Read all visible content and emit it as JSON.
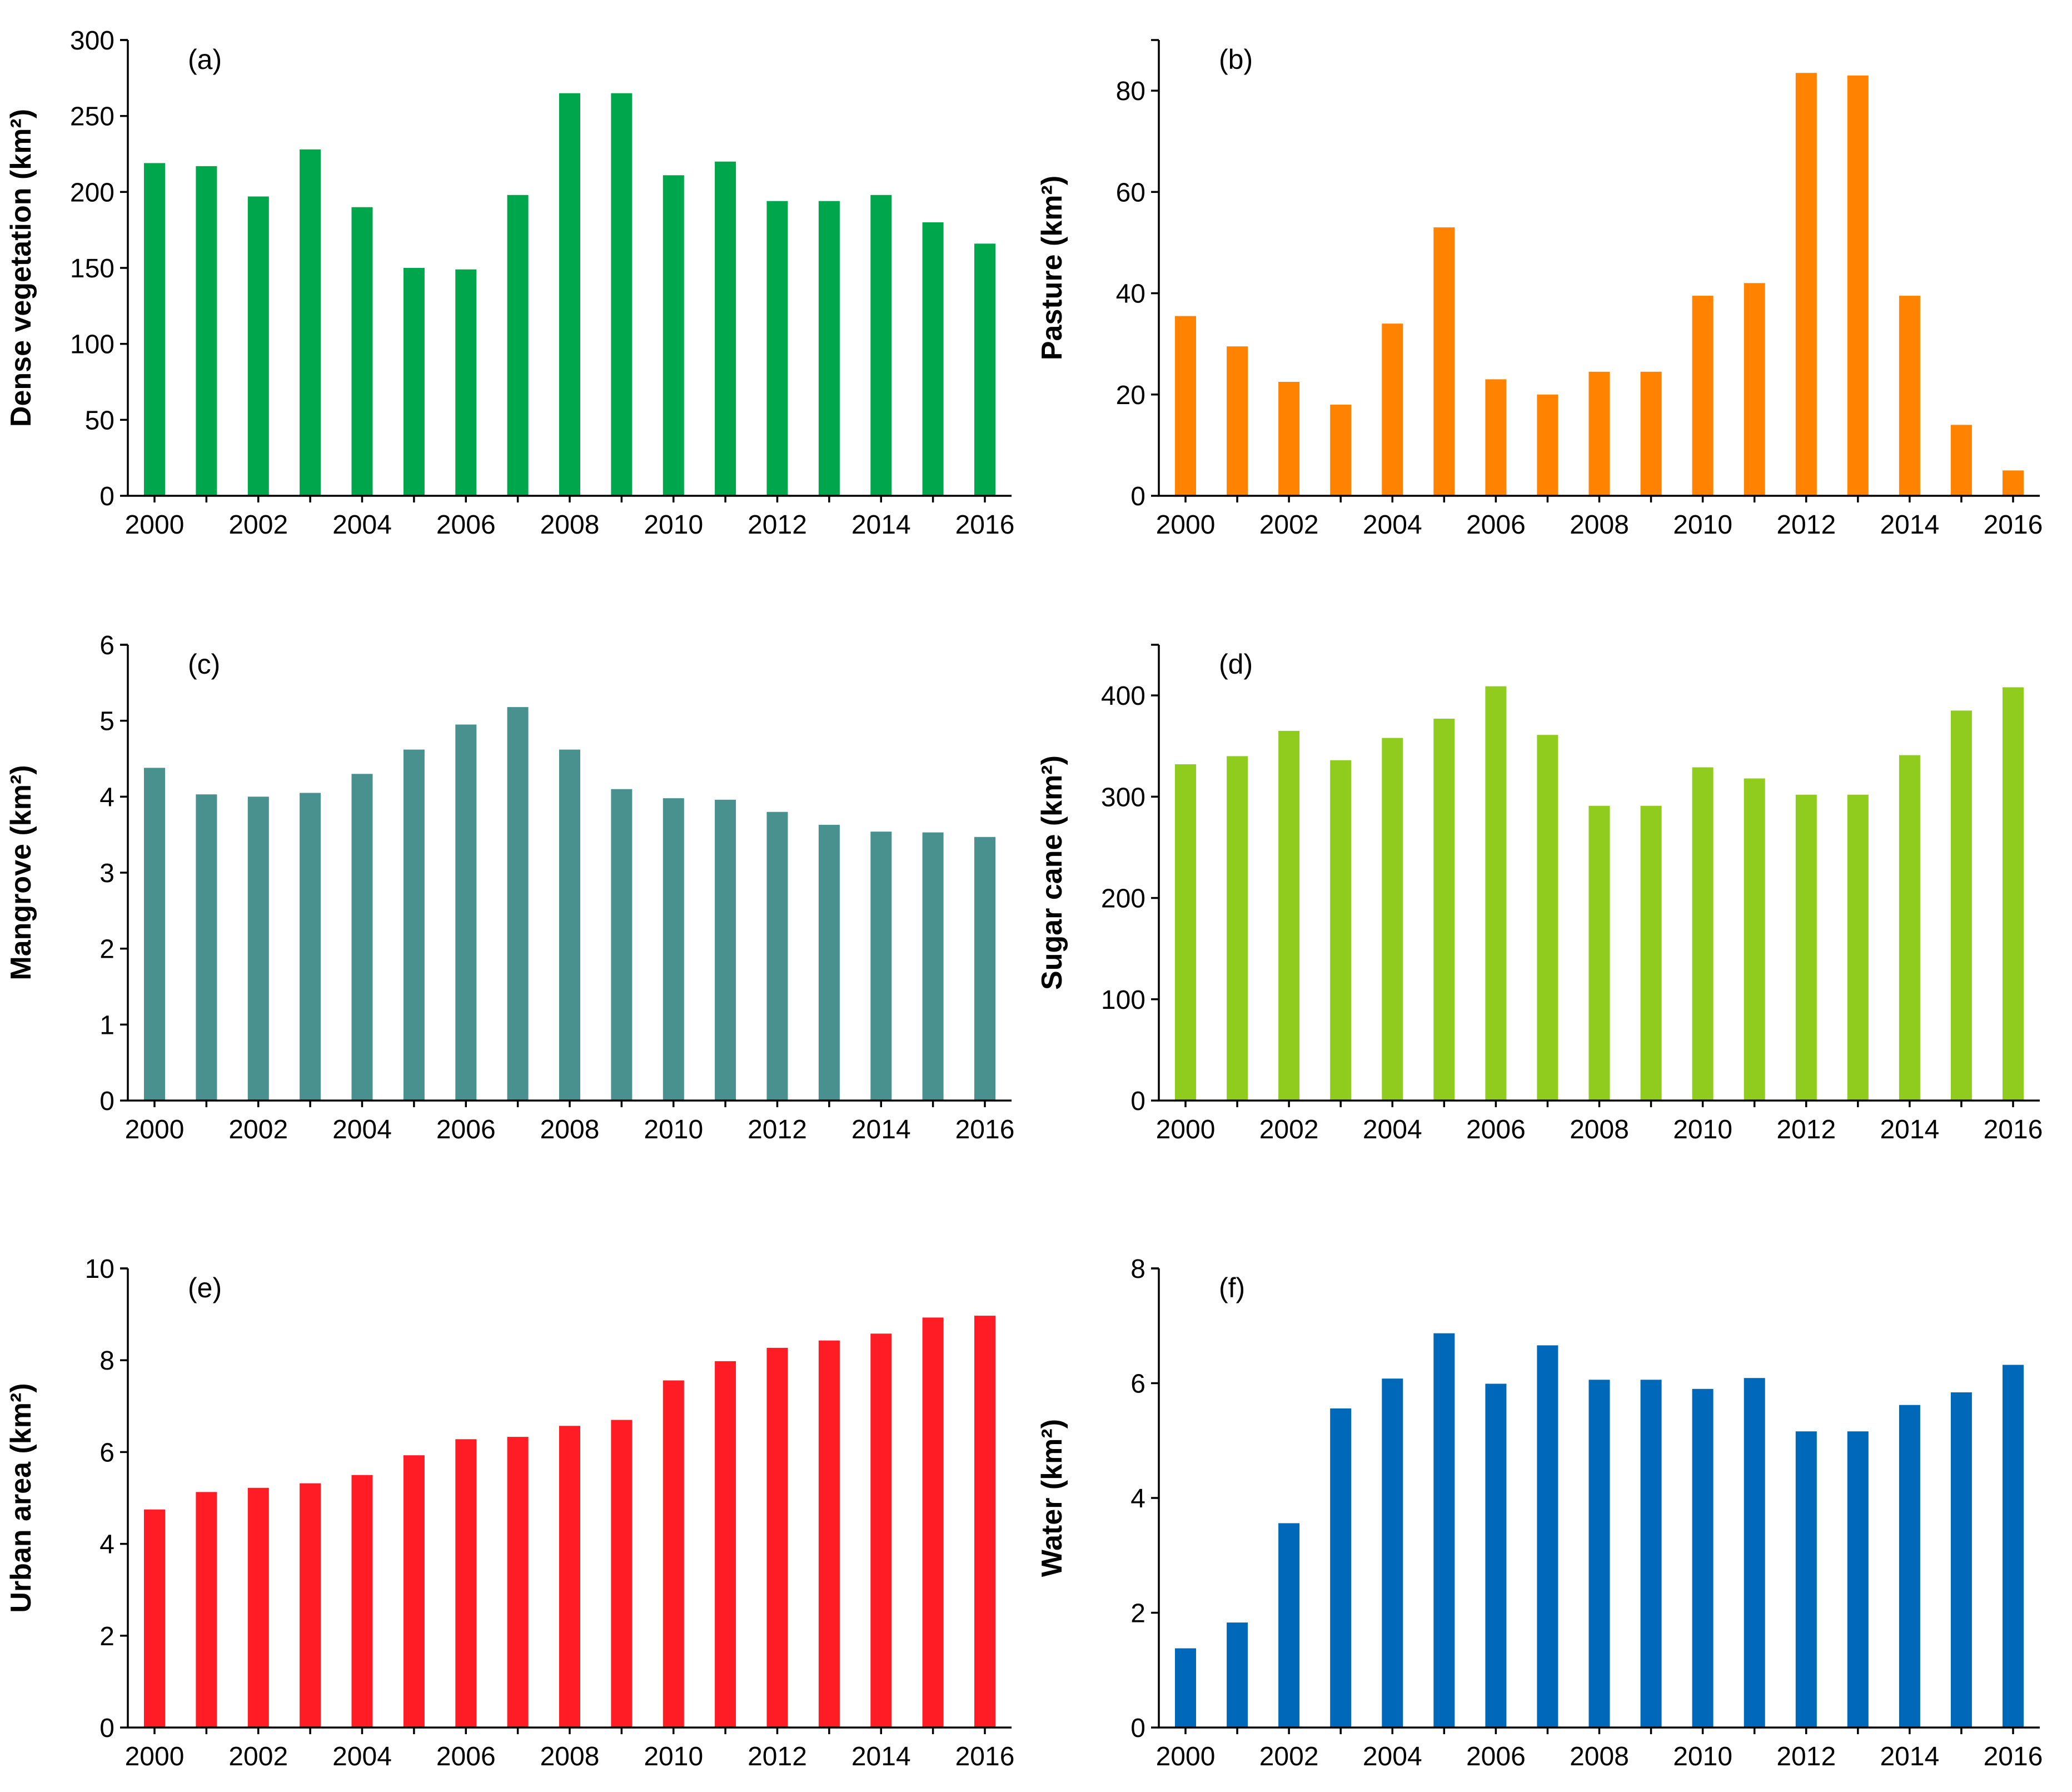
{
  "chart_data": [
    {
      "type": "bar",
      "panel_label": "(a)",
      "ylabel": "Dense vegetation (km²)",
      "color": "#00a64c",
      "categories": [
        "2000",
        "2001",
        "2002",
        "2003",
        "2004",
        "2005",
        "2006",
        "2007",
        "2008",
        "2009",
        "2010",
        "2011",
        "2012",
        "2013",
        "2014",
        "2015",
        "2016"
      ],
      "values": [
        219,
        217,
        197,
        228,
        190,
        150,
        149,
        198,
        265,
        265,
        211,
        220,
        194,
        194,
        198,
        180,
        166
      ],
      "ylim": [
        0,
        300
      ],
      "yticks": [
        0,
        50,
        100,
        150,
        200,
        250,
        300
      ],
      "xtick_labels": [
        "2000",
        "2002",
        "2004",
        "2006",
        "2008",
        "2010",
        "2012",
        "2014",
        "2016"
      ]
    },
    {
      "type": "bar",
      "panel_label": "(b)",
      "ylabel": "Pasture (km²)",
      "color": "#ff8200",
      "categories": [
        "2000",
        "2001",
        "2002",
        "2003",
        "2004",
        "2005",
        "2006",
        "2007",
        "2008",
        "2009",
        "2010",
        "2011",
        "2012",
        "2013",
        "2014",
        "2015",
        "2016"
      ],
      "values": [
        35.5,
        29.5,
        22.5,
        18,
        34,
        53,
        23,
        20,
        24.5,
        24.5,
        39.5,
        42,
        83.5,
        83,
        39.5,
        14,
        5
      ],
      "ylim": [
        0,
        90
      ],
      "yticks": [
        0,
        20,
        40,
        60,
        80
      ],
      "xtick_labels": [
        "2000",
        "2002",
        "2004",
        "2006",
        "2008",
        "2010",
        "2012",
        "2014",
        "2016"
      ]
    },
    {
      "type": "bar",
      "panel_label": "(c)",
      "ylabel": "Mangrove (km²)",
      "color": "#48918e",
      "categories": [
        "2000",
        "2001",
        "2002",
        "2003",
        "2004",
        "2005",
        "2006",
        "2007",
        "2008",
        "2009",
        "2010",
        "2011",
        "2012",
        "2013",
        "2014",
        "2015",
        "2016"
      ],
      "values": [
        4.38,
        4.03,
        4.0,
        4.05,
        4.3,
        4.62,
        4.95,
        5.18,
        4.62,
        4.1,
        3.98,
        3.96,
        3.8,
        3.63,
        3.54,
        3.53,
        3.47
      ],
      "ylim": [
        0,
        6
      ],
      "yticks": [
        0,
        1,
        2,
        3,
        4,
        5,
        6
      ],
      "xtick_labels": [
        "2000",
        "2002",
        "2004",
        "2006",
        "2008",
        "2010",
        "2012",
        "2014",
        "2016"
      ]
    },
    {
      "type": "bar",
      "panel_label": "(d)",
      "ylabel": "Sugar cane (km²)",
      "color": "#8fcc1e",
      "categories": [
        "2000",
        "2001",
        "2002",
        "2003",
        "2004",
        "2005",
        "2006",
        "2007",
        "2008",
        "2009",
        "2010",
        "2011",
        "2012",
        "2013",
        "2014",
        "2015",
        "2016"
      ],
      "values": [
        332,
        340,
        365,
        336,
        358,
        377,
        409,
        361,
        291,
        291,
        329,
        318,
        302,
        302,
        341,
        385,
        408
      ],
      "ylim": [
        0,
        450
      ],
      "yticks": [
        0,
        100,
        200,
        300,
        400
      ],
      "xtick_labels": [
        "2000",
        "2002",
        "2004",
        "2006",
        "2008",
        "2010",
        "2012",
        "2014",
        "2016"
      ]
    },
    {
      "type": "bar",
      "panel_label": "(e)",
      "ylabel": "Urban area (km²)",
      "color": "#ff1c24",
      "categories": [
        "2000",
        "2001",
        "2002",
        "2003",
        "2004",
        "2005",
        "2006",
        "2007",
        "2008",
        "2009",
        "2010",
        "2011",
        "2012",
        "2013",
        "2014",
        "2015",
        "2016"
      ],
      "values": [
        4.75,
        5.13,
        5.22,
        5.32,
        5.5,
        5.93,
        6.28,
        6.33,
        6.57,
        6.7,
        7.56,
        7.98,
        8.27,
        8.43,
        8.58,
        8.93,
        8.97
      ],
      "ylim": [
        0,
        10
      ],
      "yticks": [
        0,
        2,
        4,
        6,
        8,
        10
      ],
      "xtick_labels": [
        "2000",
        "2002",
        "2004",
        "2006",
        "2008",
        "2010",
        "2012",
        "2014",
        "2016"
      ]
    },
    {
      "type": "bar",
      "panel_label": "(f)",
      "ylabel": "Water (km²)",
      "color": "#0068b8",
      "categories": [
        "2000",
        "2001",
        "2002",
        "2003",
        "2004",
        "2005",
        "2006",
        "2007",
        "2008",
        "2009",
        "2010",
        "2011",
        "2012",
        "2013",
        "2014",
        "2015",
        "2016"
      ],
      "values": [
        1.38,
        1.83,
        3.56,
        5.56,
        6.08,
        6.87,
        5.99,
        6.66,
        6.06,
        6.06,
        5.9,
        6.09,
        5.16,
        5.16,
        5.62,
        5.84,
        6.32
      ],
      "ylim": [
        0,
        8
      ],
      "yticks": [
        0,
        2,
        4,
        6,
        8
      ],
      "xtick_labels": [
        "2000",
        "2002",
        "2004",
        "2006",
        "2008",
        "2010",
        "2012",
        "2014",
        "2016"
      ]
    }
  ]
}
